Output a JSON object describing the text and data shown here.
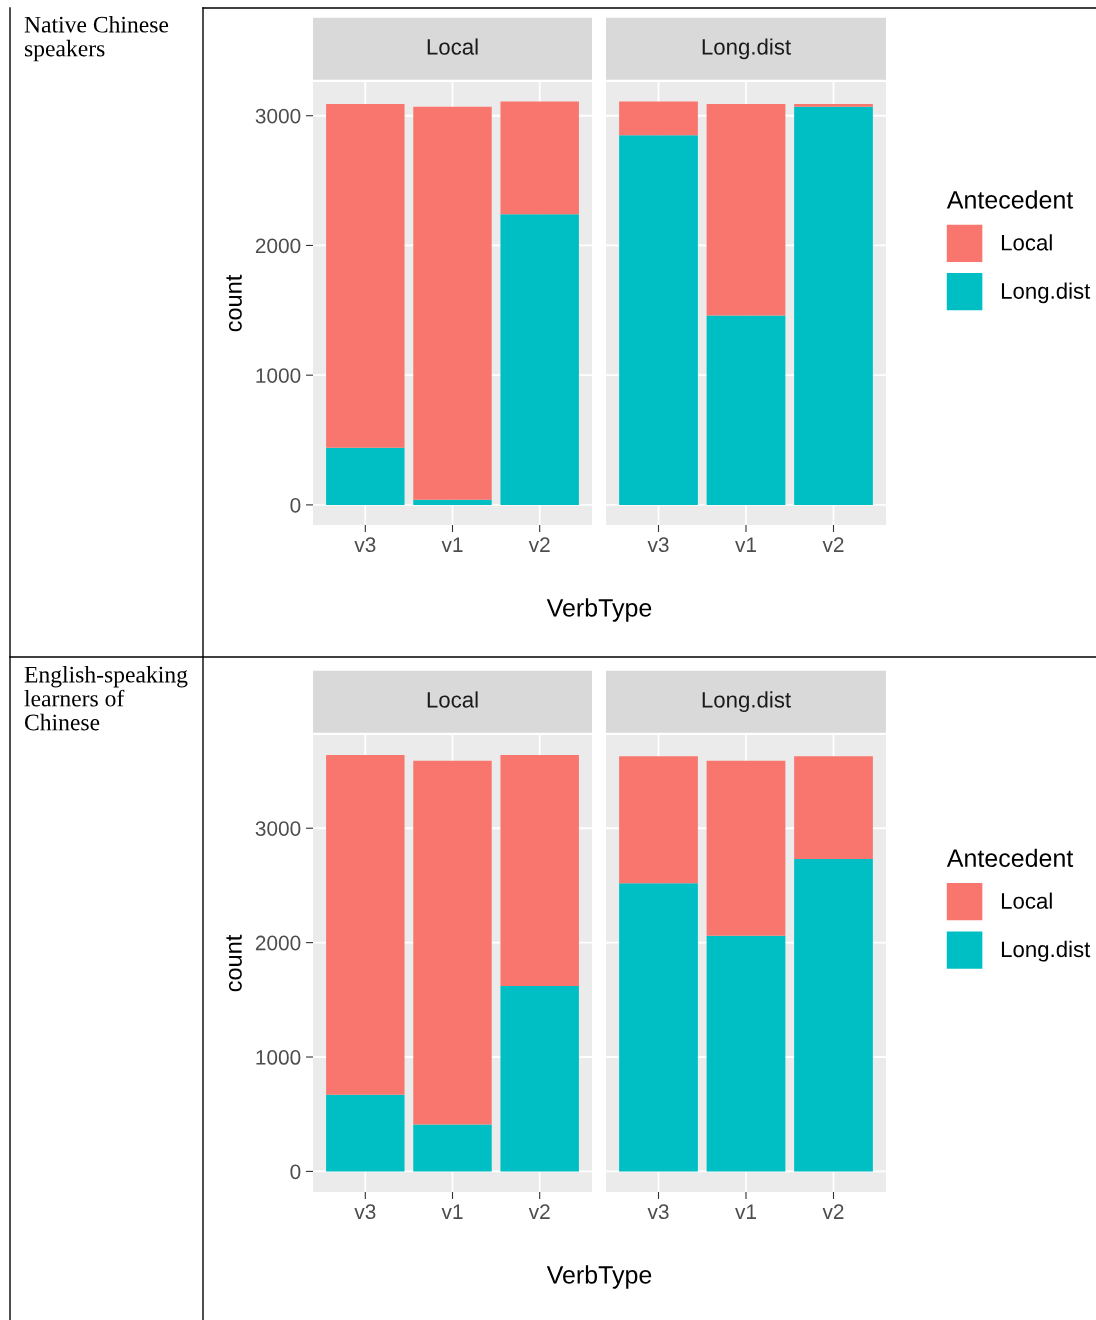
{
  "chart_data": [
    {
      "type": "bar",
      "stacked": true,
      "title": "Local",
      "ylabel": "count",
      "xlabel": "VerbType",
      "annotations": [
        "Native Chinese speakers"
      ],
      "categories": [
        "v3",
        "v1",
        "v2"
      ],
      "ylim": [
        -155,
        3260
      ],
      "yticks": [
        0,
        1000,
        2000,
        3000
      ],
      "grid": true,
      "legend": "right",
      "legend_title": "Antecedent",
      "series": [
        {
          "name": "Long.dist",
          "color": "#00bfc4",
          "values": [
            440,
            40,
            2240
          ]
        },
        {
          "name": "Local",
          "color": "#f8766d",
          "values": [
            2650,
            3030,
            870
          ]
        }
      ]
    },
    {
      "type": "bar",
      "stacked": true,
      "title": "Long.dist",
      "categories": [
        "v3",
        "v1",
        "v2"
      ],
      "ylim": [
        -155,
        3260
      ],
      "yticks": [
        0,
        1000,
        2000,
        3000
      ],
      "grid": true,
      "tick_labels": "x",
      "series": [
        {
          "color": "#00bfc4",
          "values": [
            2850,
            1460,
            3070
          ]
        },
        {
          "color": "#f8766d",
          "values": [
            260,
            1630,
            20
          ]
        }
      ]
    },
    {
      "type": "bar",
      "stacked": true,
      "title": "Local",
      "ylabel": "count",
      "xlabel": "VerbType",
      "annotations": [
        "English-speaking learners of Chinese"
      ],
      "categories": [
        "v3",
        "v1",
        "v2"
      ],
      "ylim": [
        -180,
        3815
      ],
      "yticks": [
        0,
        1000,
        2000,
        3000
      ],
      "grid": true,
      "legend": "right",
      "legend_title": "Antecedent",
      "series": [
        {
          "name": "Long.dist",
          "color": "#00bfc4",
          "values": [
            670,
            410,
            1620
          ]
        },
        {
          "name": "Local",
          "color": "#f8766d",
          "values": [
            2970,
            3180,
            2020
          ]
        }
      ]
    },
    {
      "type": "bar",
      "stacked": true,
      "title": "Long.dist",
      "categories": [
        "v3",
        "v1",
        "v2"
      ],
      "ylim": [
        -180,
        3815
      ],
      "yticks": [
        0,
        1000,
        2000,
        3000
      ],
      "grid": true,
      "tick_labels": "x",
      "series": [
        {
          "color": "#00bfc4",
          "values": [
            2520,
            2060,
            2730
          ]
        },
        {
          "color": "#f8766d",
          "values": [
            1110,
            1530,
            900
          ]
        }
      ]
    }
  ]
}
